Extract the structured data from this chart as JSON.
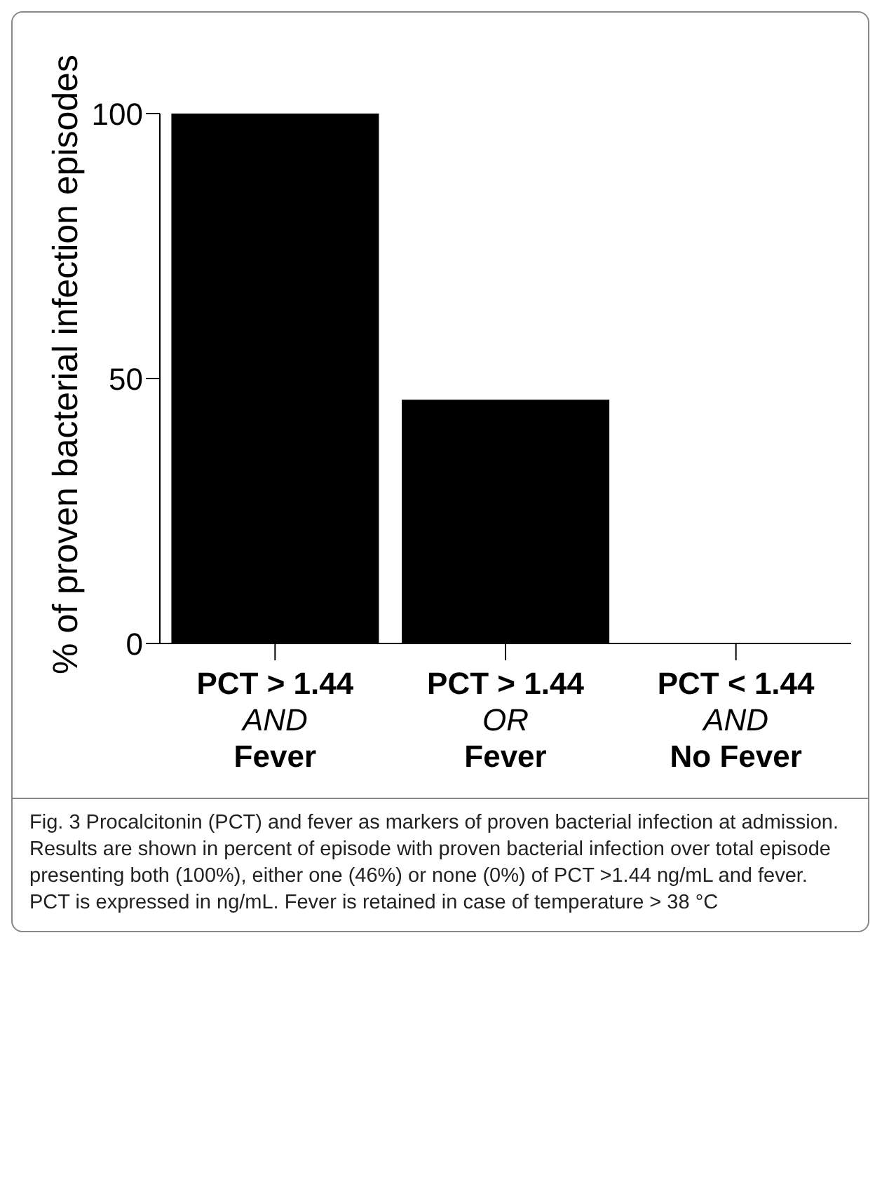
{
  "chart_data": {
    "type": "bar",
    "ylabel": "% of proven bacterial infection episodes",
    "categories": [
      "PCT > 1.44\nAND\nFever",
      "PCT > 1.44\nOR\nFever",
      "PCT < 1.44\nAND\nNo Fever"
    ],
    "values": [
      100,
      46,
      0
    ],
    "color": "#000000",
    "ylim": [
      0,
      100
    ],
    "yticks": [
      0,
      50,
      100
    ],
    "grid": false,
    "legend": false,
    "annotations": [
      "Fig. 3 Procalcitonin (PCT) and fever as markers of proven bacterial infection at admission. Results are shown in percent of episode with proven bacterial infection over total episode presenting both (100%), either one (46%) or none (0%) of PCT >1.44 ng/mL and fever. PCT is expressed in ng/mL. Fever is retained in case of temperature > 38 °C"
    ]
  }
}
